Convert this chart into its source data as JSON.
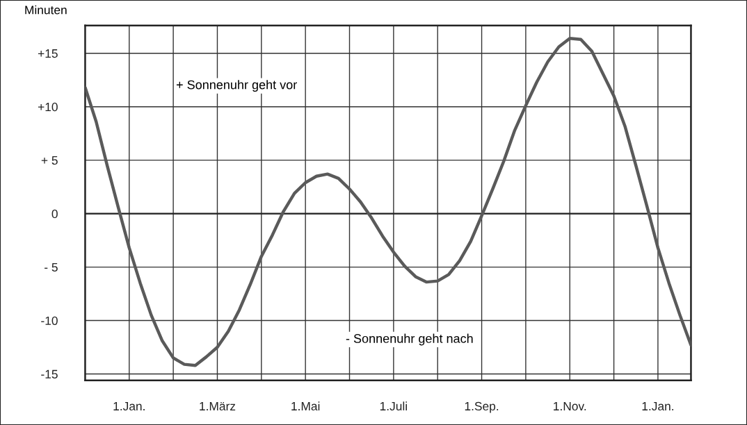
{
  "chart_data": {
    "type": "line",
    "ylabel": "Minuten",
    "annotations": [
      "+ Sonnenuhr geht vor",
      "- Sonnenuhr geht nach"
    ],
    "categories": [
      null,
      null,
      null,
      null,
      "1.Jan.",
      null,
      null,
      null,
      null,
      null,
      null,
      null,
      "1.März",
      null,
      null,
      null,
      null,
      null,
      null,
      null,
      "1.Mai",
      null,
      null,
      null,
      null,
      null,
      null,
      null,
      "1.Juli",
      null,
      null,
      null,
      null,
      null,
      null,
      null,
      "1.Sep.",
      null,
      null,
      null,
      null,
      null,
      null,
      null,
      "1.Nov.",
      null,
      null,
      null,
      null,
      null,
      null,
      null,
      "1.Jan.",
      null,
      null,
      null
    ],
    "series": [
      {
        "color": "#5a5a5a",
        "values": [
          11.8,
          8.6,
          4.5,
          0.6,
          -3.2,
          -6.5,
          -9.5,
          -11.9,
          -13.5,
          -14.1,
          -14.2,
          -13.4,
          -12.5,
          -11,
          -9,
          -6.6,
          -4,
          -2,
          0.2,
          1.9,
          2.9,
          3.5,
          3.7,
          3.3,
          2.3,
          1.1,
          -0.4,
          -2.1,
          -3.6,
          -4.9,
          -5.9,
          -6.4,
          -6.3,
          -5.7,
          -4.4,
          -2.6,
          -0.2,
          2.3,
          4.9,
          7.8,
          10.1,
          12.3,
          14.2,
          15.6,
          16.4,
          16.3,
          15.2,
          13.1,
          11,
          8.2,
          4.5,
          0.7,
          -3.2,
          -6.5,
          -9.5,
          -12.3
        ]
      }
    ],
    "ylim": [
      -15.6,
      17.6
    ],
    "yticks": [
      {
        "value": -15,
        "label": "-15"
      },
      {
        "value": -10,
        "label": "-10"
      },
      {
        "value": -5,
        "label": "- 5"
      },
      {
        "value": 0,
        "label": "0"
      },
      {
        "value": 5,
        "label": "+ 5"
      },
      {
        "value": 10,
        "label": "+10"
      },
      {
        "value": 15,
        "label": "+15"
      }
    ],
    "grid": true,
    "marker": "none",
    "line_style": "solid"
  }
}
